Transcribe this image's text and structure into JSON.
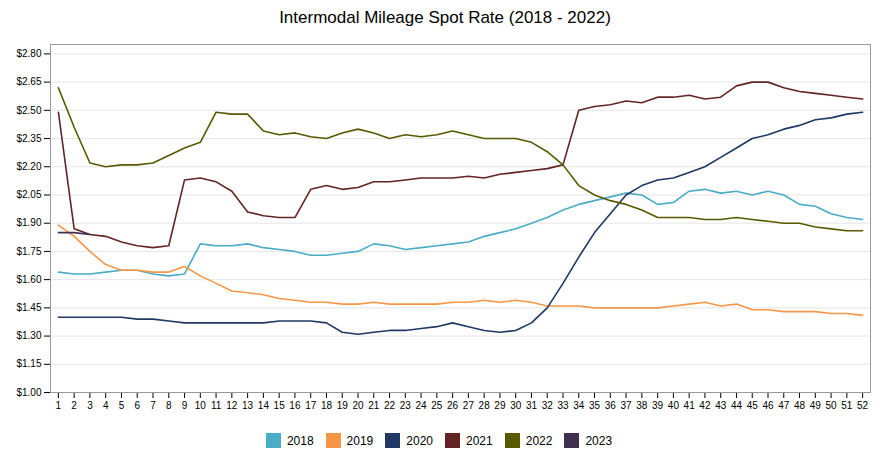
{
  "chart_data": {
    "type": "line",
    "title": "Intermodal Mileage Spot Rate (2018 - 2022)",
    "x": [
      1,
      2,
      3,
      4,
      5,
      6,
      7,
      8,
      9,
      10,
      11,
      12,
      13,
      14,
      15,
      16,
      17,
      18,
      19,
      20,
      21,
      22,
      23,
      24,
      25,
      26,
      27,
      28,
      29,
      30,
      31,
      32,
      33,
      34,
      35,
      36,
      37,
      38,
      39,
      40,
      41,
      42,
      43,
      44,
      45,
      46,
      47,
      48,
      49,
      50,
      51,
      52
    ],
    "xlim": [
      0.5,
      52.5
    ],
    "xticks": [
      1,
      2,
      3,
      4,
      5,
      6,
      7,
      8,
      9,
      10,
      11,
      12,
      13,
      14,
      15,
      16,
      17,
      18,
      19,
      20,
      21,
      22,
      23,
      24,
      25,
      26,
      27,
      28,
      29,
      30,
      31,
      32,
      33,
      34,
      35,
      36,
      37,
      38,
      39,
      40,
      41,
      42,
      43,
      44,
      45,
      46,
      47,
      48,
      49,
      50,
      51,
      52
    ],
    "ylim": [
      1.0,
      2.85
    ],
    "yticks": [
      {
        "value": 1.0,
        "label": "$1.00"
      },
      {
        "value": 1.15,
        "label": "$1.15"
      },
      {
        "value": 1.3,
        "label": "$1.30"
      },
      {
        "value": 1.45,
        "label": "$1.45"
      },
      {
        "value": 1.6,
        "label": "$1.60"
      },
      {
        "value": 1.75,
        "label": "$1.75"
      },
      {
        "value": 1.9,
        "label": "$1.90"
      },
      {
        "value": 2.05,
        "label": "$2.05"
      },
      {
        "value": 2.2,
        "label": "$2.20"
      },
      {
        "value": 2.35,
        "label": "$2.35"
      },
      {
        "value": 2.5,
        "label": "$2.50"
      },
      {
        "value": 2.65,
        "label": "$2.65"
      },
      {
        "value": 2.8,
        "label": "$2.80"
      }
    ],
    "grid": true,
    "legend": "bottom",
    "series": [
      {
        "name": "2018",
        "color": "#4BACC6",
        "values": [
          1.64,
          1.63,
          1.63,
          1.64,
          1.65,
          1.65,
          1.63,
          1.62,
          1.63,
          1.79,
          1.78,
          1.78,
          1.79,
          1.77,
          1.76,
          1.75,
          1.73,
          1.73,
          1.74,
          1.75,
          1.79,
          1.78,
          1.76,
          1.77,
          1.78,
          1.79,
          1.8,
          1.83,
          1.85,
          1.87,
          1.9,
          1.93,
          1.97,
          2.0,
          2.02,
          2.04,
          2.06,
          2.05,
          2.0,
          2.01,
          2.07,
          2.08,
          2.06,
          2.07,
          2.05,
          2.07,
          2.05,
          2.0,
          1.99,
          1.95,
          1.93,
          1.92
        ]
      },
      {
        "name": "2019",
        "color": "#F79646",
        "values": [
          1.89,
          1.83,
          1.75,
          1.68,
          1.65,
          1.65,
          1.64,
          1.64,
          1.67,
          1.62,
          1.58,
          1.54,
          1.53,
          1.52,
          1.5,
          1.49,
          1.48,
          1.48,
          1.47,
          1.47,
          1.48,
          1.47,
          1.47,
          1.47,
          1.47,
          1.48,
          1.48,
          1.49,
          1.48,
          1.49,
          1.48,
          1.46,
          1.46,
          1.46,
          1.45,
          1.45,
          1.45,
          1.45,
          1.45,
          1.46,
          1.47,
          1.48,
          1.46,
          1.47,
          1.44,
          1.44,
          1.43,
          1.43,
          1.43,
          1.42,
          1.42,
          1.41
        ]
      },
      {
        "name": "2020",
        "color": "#1F3864",
        "values": [
          1.4,
          1.4,
          1.4,
          1.4,
          1.4,
          1.39,
          1.39,
          1.38,
          1.37,
          1.37,
          1.37,
          1.37,
          1.37,
          1.37,
          1.38,
          1.38,
          1.38,
          1.37,
          1.32,
          1.31,
          1.32,
          1.33,
          1.33,
          1.34,
          1.35,
          1.37,
          1.35,
          1.33,
          1.32,
          1.33,
          1.37,
          1.45,
          1.58,
          1.72,
          1.85,
          1.95,
          2.05,
          2.1,
          2.13,
          2.14,
          2.17,
          2.2,
          2.25,
          2.3,
          2.35,
          2.37,
          2.4,
          2.42,
          2.45,
          2.46,
          2.48,
          2.49
        ]
      },
      {
        "name": "2021",
        "color": "#632523",
        "values": [
          2.49,
          1.87,
          1.84,
          1.83,
          1.8,
          1.78,
          1.77,
          1.78,
          2.13,
          2.14,
          2.12,
          2.07,
          1.96,
          1.94,
          1.93,
          1.93,
          2.08,
          2.1,
          2.08,
          2.09,
          2.12,
          2.12,
          2.13,
          2.14,
          2.14,
          2.14,
          2.15,
          2.14,
          2.16,
          2.17,
          2.18,
          2.19,
          2.21,
          2.5,
          2.52,
          2.53,
          2.55,
          2.54,
          2.57,
          2.57,
          2.58,
          2.56,
          2.57,
          2.63,
          2.65,
          2.65,
          2.62,
          2.6,
          2.59,
          2.58,
          2.57,
          2.56
        ]
      },
      {
        "name": "2022",
        "color": "#595900",
        "values": [
          2.62,
          2.41,
          2.22,
          2.2,
          2.21,
          2.21,
          2.22,
          2.26,
          2.3,
          2.33,
          2.49,
          2.48,
          2.48,
          2.39,
          2.37,
          2.38,
          2.36,
          2.35,
          2.38,
          2.4,
          2.38,
          2.35,
          2.37,
          2.36,
          2.37,
          2.39,
          2.37,
          2.35,
          2.35,
          2.35,
          2.33,
          2.28,
          2.21,
          2.1,
          2.05,
          2.02,
          2.0,
          1.97,
          1.93,
          1.93,
          1.93,
          1.92,
          1.92,
          1.93,
          1.92,
          1.91,
          1.9,
          1.9,
          1.88,
          1.87,
          1.86,
          1.86
        ]
      },
      {
        "name": "2023",
        "color": "#403152",
        "values": [
          1.85,
          1.85,
          1.84,
          null,
          null,
          null,
          null,
          null,
          null,
          null,
          null,
          null,
          null,
          null,
          null,
          null,
          null,
          null,
          null,
          null,
          null,
          null,
          null,
          null,
          null,
          null,
          null,
          null,
          null,
          null,
          null,
          null,
          null,
          null,
          null,
          null,
          null,
          null,
          null,
          null,
          null,
          null,
          null,
          null,
          null,
          null,
          null,
          null,
          null,
          null,
          null,
          null
        ]
      }
    ]
  }
}
